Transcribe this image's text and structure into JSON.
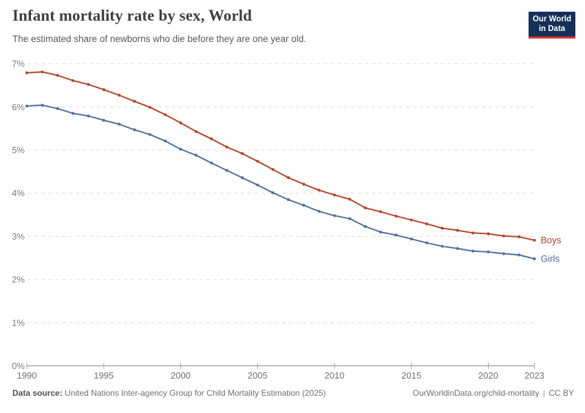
{
  "header": {
    "title": "Infant mortality rate by sex, World",
    "subtitle": "The estimated share of newborns who die before they are one year old.",
    "logo": {
      "line1": "Our World",
      "line2": "in Data",
      "bg_color": "#143058",
      "stripe_color": "#d7352c"
    }
  },
  "chart_data": {
    "type": "line",
    "title": "Infant mortality rate by sex, World",
    "xlabel": "",
    "ylabel": "",
    "ylim": [
      0,
      7
    ],
    "grid": "horizontal-dashed",
    "legend_position": "right-end-labels",
    "x": [
      1990,
      1991,
      1992,
      1993,
      1994,
      1995,
      1996,
      1997,
      1998,
      1999,
      2000,
      2001,
      2002,
      2003,
      2004,
      2005,
      2006,
      2007,
      2008,
      2009,
      2010,
      2011,
      2012,
      2013,
      2014,
      2015,
      2016,
      2017,
      2018,
      2019,
      2020,
      2021,
      2022,
      2023
    ],
    "series": [
      {
        "name": "Boys",
        "color": "#b5432a",
        "values": [
          6.79,
          6.81,
          6.73,
          6.61,
          6.52,
          6.4,
          6.27,
          6.13,
          5.99,
          5.82,
          5.63,
          5.43,
          5.26,
          5.07,
          4.92,
          4.74,
          4.55,
          4.36,
          4.21,
          4.07,
          3.96,
          3.86,
          3.66,
          3.57,
          3.47,
          3.38,
          3.29,
          3.19,
          3.14,
          3.08,
          3.06,
          3.01,
          2.99,
          2.91
        ]
      },
      {
        "name": "Girls",
        "color": "#4e6f9f",
        "values": [
          6.02,
          6.04,
          5.96,
          5.85,
          5.79,
          5.69,
          5.6,
          5.47,
          5.36,
          5.21,
          5.02,
          4.88,
          4.7,
          4.53,
          4.36,
          4.19,
          4.01,
          3.85,
          3.72,
          3.58,
          3.48,
          3.41,
          3.23,
          3.1,
          3.03,
          2.94,
          2.85,
          2.77,
          2.72,
          2.66,
          2.64,
          2.6,
          2.57,
          2.48
        ]
      }
    ],
    "y_ticks": [
      0,
      1,
      2,
      3,
      4,
      5,
      6,
      7
    ],
    "y_tick_labels": [
      "0%",
      "1%",
      "2%",
      "3%",
      "4%",
      "5%",
      "6%",
      "7%"
    ],
    "x_ticks": [
      1990,
      1995,
      2000,
      2005,
      2010,
      2015,
      2020,
      2023
    ],
    "x_tick_labels": [
      "1990",
      "1995",
      "2000",
      "2005",
      "2010",
      "2015",
      "2020",
      "2023"
    ]
  },
  "footer": {
    "source_label": "Data source:",
    "source_text": "United Nations Inter-agency Group for Child Mortality Estimation (2025)",
    "site": "OurWorldinData.org/child-mortality",
    "separator": "|",
    "license": "CC BY"
  }
}
